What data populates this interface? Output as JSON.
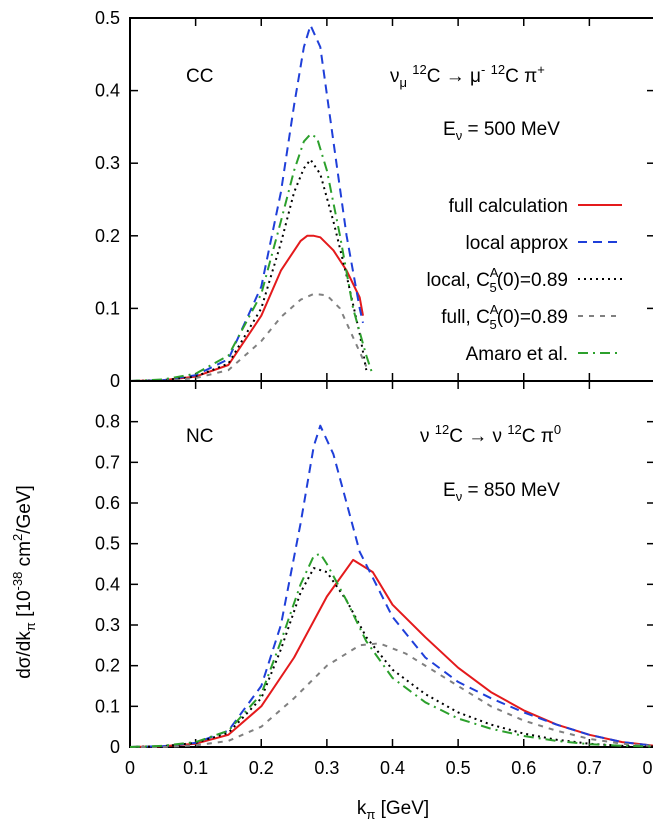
{
  "figure": {
    "ylabel": "dσ/dk",
    "ylabel_sub": "π",
    "ylabel_units": " [10",
    "ylabel_exp": "-38",
    "ylabel_units2": " cm",
    "ylabel_exp2": "2",
    "ylabel_units3": "/GeV]",
    "xlabel": "k",
    "xlabel_sub": "π",
    "xlabel_units": " [GeV]"
  },
  "chart_data": [
    {
      "type": "line",
      "panel": "top",
      "tag": "CC",
      "reaction": {
        "p1": "ν",
        "p1_sub": "μ",
        "p1_sup": "",
        "sp1": " ",
        "iso1": "12",
        "n1": "C ",
        "arrow": "→",
        "p2": " μ",
        "p2_sup": "-",
        "sp2": " ",
        "iso2": "12",
        "n2": "C ",
        "p3": "π",
        "p3_sup": "+"
      },
      "energy": {
        "e": "E",
        "e_sub": "ν",
        "value": " = 500 MeV"
      },
      "xlim": [
        0,
        0.8
      ],
      "ylim": [
        0,
        0.5
      ],
      "xticks": [
        "0",
        "0.1",
        "0.2",
        "0.3",
        "0.4",
        "0.5",
        "0.6",
        "0.7",
        "0.8"
      ],
      "yticks": [
        "0",
        "0.1",
        "0.2",
        "0.3",
        "0.4",
        "0.5"
      ],
      "legend_position": "right",
      "series": [
        {
          "name": "full calculation",
          "color": "#e41a1c",
          "style": "solid",
          "x": [
            0.0,
            0.05,
            0.1,
            0.15,
            0.2,
            0.23,
            0.26,
            0.27,
            0.28,
            0.29,
            0.31,
            0.33,
            0.35,
            0.355
          ],
          "y": [
            0.0,
            0.001,
            0.006,
            0.022,
            0.09,
            0.152,
            0.193,
            0.2,
            0.2,
            0.198,
            0.18,
            0.152,
            0.115,
            0.09
          ]
        },
        {
          "name": "local approx",
          "color": "#1f3fd9",
          "style": "dashed",
          "x": [
            0.0,
            0.05,
            0.1,
            0.15,
            0.2,
            0.23,
            0.25,
            0.265,
            0.275,
            0.29,
            0.31,
            0.33,
            0.35,
            0.355
          ],
          "y": [
            0.0,
            0.001,
            0.008,
            0.03,
            0.13,
            0.26,
            0.38,
            0.46,
            0.49,
            0.46,
            0.33,
            0.2,
            0.1,
            0.08
          ]
        },
        {
          "name": "local, C_5^A(0)=0.89",
          "color": "#000000",
          "style": "dotted",
          "x": [
            0.0,
            0.05,
            0.1,
            0.15,
            0.2,
            0.23,
            0.25,
            0.265,
            0.275,
            0.29,
            0.31,
            0.33,
            0.35,
            0.36
          ],
          "y": [
            0.0,
            0.001,
            0.006,
            0.024,
            0.1,
            0.19,
            0.26,
            0.293,
            0.305,
            0.285,
            0.22,
            0.145,
            0.065,
            0.015
          ]
        },
        {
          "name": "full, C_5^A(0)=0.89",
          "color": "#808080",
          "style": "dashed-short",
          "x": [
            0.0,
            0.05,
            0.1,
            0.15,
            0.2,
            0.23,
            0.26,
            0.28,
            0.3,
            0.32,
            0.34,
            0.36
          ],
          "y": [
            0.0,
            0.0,
            0.004,
            0.015,
            0.055,
            0.088,
            0.112,
            0.12,
            0.118,
            0.1,
            0.06,
            0.02
          ]
        },
        {
          "name": "Amaro et al.",
          "color": "#2ca02c",
          "style": "dash-dot",
          "x": [
            0.0,
            0.05,
            0.1,
            0.15,
            0.2,
            0.23,
            0.25,
            0.265,
            0.275,
            0.285,
            0.3,
            0.32,
            0.34,
            0.36,
            0.37
          ],
          "y": [
            0.0,
            0.002,
            0.01,
            0.035,
            0.12,
            0.22,
            0.29,
            0.33,
            0.34,
            0.335,
            0.29,
            0.2,
            0.1,
            0.035,
            0.008
          ]
        }
      ]
    },
    {
      "type": "line",
      "panel": "bottom",
      "tag": "NC",
      "reaction": {
        "p1": "ν",
        "p1_sub": "",
        "p1_sup": "",
        "sp1": " ",
        "iso1": "12",
        "n1": "C ",
        "arrow": "→",
        "p2": " ν",
        "p2_sup": "",
        "sp2": " ",
        "iso2": "12",
        "n2": "C ",
        "p3": "π",
        "p3_sup": "0"
      },
      "energy": {
        "e": "E",
        "e_sub": "ν",
        "value": " = 850 MeV"
      },
      "xlim": [
        0,
        0.8
      ],
      "ylim": [
        0,
        0.9
      ],
      "xticks": [
        "0",
        "0.1",
        "0.2",
        "0.3",
        "0.4",
        "0.5",
        "0.6",
        "0.7",
        "0.8"
      ],
      "yticks": [
        "0",
        "0.1",
        "0.2",
        "0.3",
        "0.4",
        "0.5",
        "0.6",
        "0.7",
        "0.8"
      ],
      "series": [
        {
          "name": "full calculation",
          "color": "#e41a1c",
          "style": "solid",
          "x": [
            0.0,
            0.05,
            0.1,
            0.15,
            0.2,
            0.25,
            0.3,
            0.34,
            0.37,
            0.4,
            0.45,
            0.5,
            0.55,
            0.6,
            0.65,
            0.7,
            0.75,
            0.8
          ],
          "y": [
            0.0,
            0.002,
            0.008,
            0.03,
            0.1,
            0.22,
            0.37,
            0.46,
            0.43,
            0.35,
            0.27,
            0.195,
            0.135,
            0.09,
            0.055,
            0.03,
            0.012,
            0.003
          ]
        },
        {
          "name": "local approx",
          "color": "#1f3fd9",
          "style": "dashed",
          "x": [
            0.0,
            0.05,
            0.1,
            0.15,
            0.2,
            0.23,
            0.26,
            0.28,
            0.29,
            0.31,
            0.33,
            0.35,
            0.4,
            0.45,
            0.5,
            0.55,
            0.6,
            0.65,
            0.7,
            0.75,
            0.8
          ],
          "y": [
            0.0,
            0.002,
            0.01,
            0.04,
            0.15,
            0.3,
            0.55,
            0.74,
            0.79,
            0.72,
            0.6,
            0.48,
            0.32,
            0.22,
            0.16,
            0.12,
            0.085,
            0.055,
            0.03,
            0.012,
            0.003
          ]
        },
        {
          "name": "local, C_5^A(0)=0.89",
          "color": "#000000",
          "style": "dotted",
          "x": [
            0.0,
            0.05,
            0.1,
            0.15,
            0.2,
            0.23,
            0.26,
            0.28,
            0.3,
            0.33,
            0.36,
            0.4,
            0.45,
            0.5,
            0.55,
            0.6,
            0.65,
            0.7,
            0.75,
            0.8
          ],
          "y": [
            0.0,
            0.002,
            0.01,
            0.035,
            0.12,
            0.24,
            0.38,
            0.44,
            0.43,
            0.36,
            0.27,
            0.19,
            0.13,
            0.085,
            0.055,
            0.033,
            0.018,
            0.008,
            0.003,
            0.001
          ]
        },
        {
          "name": "full, C_5^A(0)=0.89",
          "color": "#808080",
          "style": "dashed-short",
          "x": [
            0.0,
            0.05,
            0.1,
            0.15,
            0.2,
            0.25,
            0.3,
            0.35,
            0.38,
            0.42,
            0.46,
            0.5,
            0.55,
            0.6,
            0.65,
            0.7,
            0.75,
            0.8
          ],
          "y": [
            0.0,
            0.0,
            0.004,
            0.015,
            0.05,
            0.12,
            0.2,
            0.25,
            0.255,
            0.23,
            0.19,
            0.15,
            0.1,
            0.065,
            0.04,
            0.02,
            0.008,
            0.002
          ]
        },
        {
          "name": "Amaro et al.",
          "color": "#2ca02c",
          "style": "dash-dot",
          "x": [
            0.0,
            0.05,
            0.1,
            0.15,
            0.2,
            0.23,
            0.26,
            0.28,
            0.29,
            0.3,
            0.33,
            0.36,
            0.4,
            0.45,
            0.5,
            0.55,
            0.6,
            0.65,
            0.7,
            0.75,
            0.8
          ],
          "y": [
            0.0,
            0.003,
            0.012,
            0.04,
            0.13,
            0.26,
            0.4,
            0.47,
            0.475,
            0.45,
            0.36,
            0.26,
            0.17,
            0.11,
            0.07,
            0.045,
            0.027,
            0.015,
            0.007,
            0.003,
            0.001
          ]
        }
      ]
    }
  ],
  "legend": [
    {
      "pre": "full calculation",
      "sub": "",
      "sup": "",
      "post": ""
    },
    {
      "pre": "local approx",
      "sub": "",
      "sup": "",
      "post": ""
    },
    {
      "pre": "local, C",
      "sub": "5",
      "sup": "A",
      "post": "(0)=0.89"
    },
    {
      "pre": "full, C",
      "sub": "5",
      "sup": "A",
      "post": "(0)=0.89"
    },
    {
      "pre": "Amaro et al.",
      "sub": "",
      "sup": "",
      "post": ""
    }
  ]
}
